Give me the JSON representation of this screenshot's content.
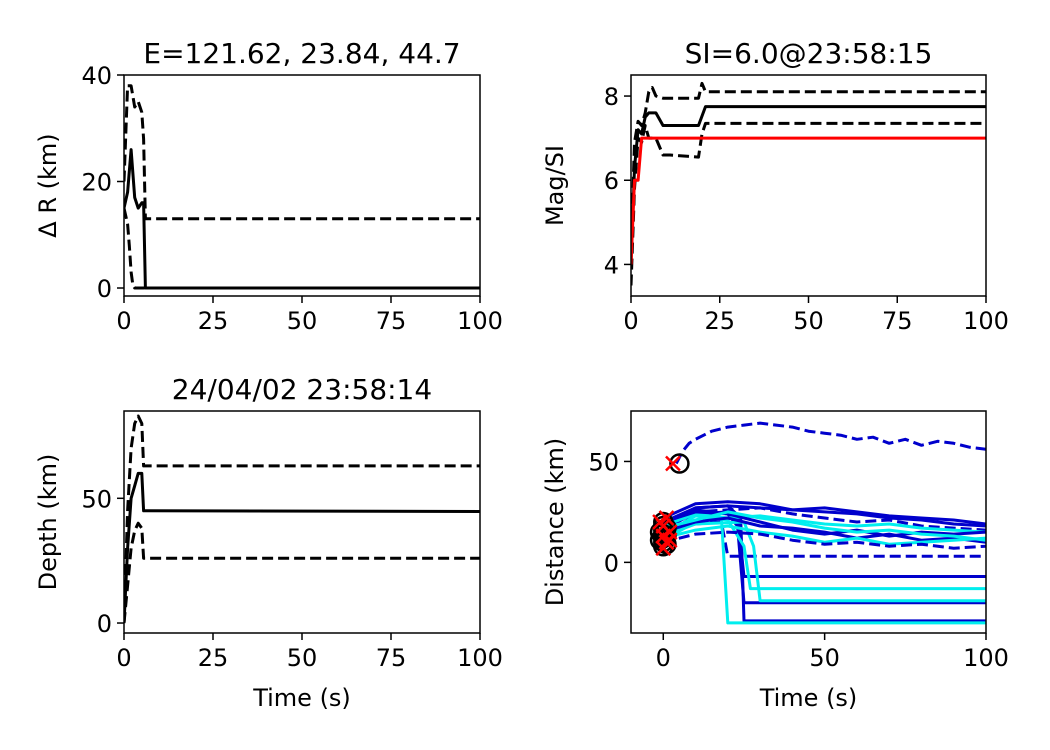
{
  "chart_data": [
    {
      "type": "line",
      "title": "E=121.62, 23.84, 44.7",
      "xlabel": "",
      "ylabel": "Δ R (km)",
      "xlim": [
        0,
        100
      ],
      "ylim": [
        -1.5,
        40
      ],
      "xticks": [
        0,
        25,
        50,
        75,
        100
      ],
      "yticks": [
        0,
        20,
        40
      ],
      "series": [
        {
          "style": "solid",
          "color": "#000000",
          "x": [
            0,
            1,
            2,
            3,
            4,
            5,
            5.5,
            6,
            10,
            100
          ],
          "y": [
            15,
            18,
            26,
            17,
            15,
            16,
            16,
            0,
            0,
            0
          ]
        },
        {
          "style": "dashed",
          "color": "#000000",
          "x": [
            0,
            1,
            2,
            3,
            4,
            5,
            5.5,
            6,
            20,
            100
          ],
          "y": [
            20,
            38,
            38,
            34,
            35,
            33,
            28,
            13,
            13,
            13
          ]
        },
        {
          "style": "dashed",
          "color": "#000000",
          "x": [
            0,
            1,
            1.5,
            2,
            2.5,
            3,
            10,
            100
          ],
          "y": [
            15,
            12,
            8,
            3,
            0.5,
            0,
            0,
            0
          ]
        }
      ]
    },
    {
      "type": "line",
      "title": "SI=6.0@23:58:15",
      "xlabel": "",
      "ylabel": "Mag/SI",
      "xlim": [
        0,
        100
      ],
      "ylim": [
        3.25,
        8.5
      ],
      "xticks": [
        0,
        25,
        50,
        75,
        100
      ],
      "yticks": [
        4,
        6,
        8
      ],
      "series": [
        {
          "style": "solid",
          "color": "#000000",
          "x": [
            0,
            1,
            2,
            3,
            4,
            5,
            7,
            9,
            11,
            19,
            21,
            25,
            100
          ],
          "y": [
            4,
            6.3,
            7.2,
            7.1,
            7.5,
            7.6,
            7.6,
            7.3,
            7.3,
            7.3,
            7.75,
            7.75,
            7.75
          ]
        },
        {
          "style": "dashed",
          "color": "#000000",
          "x": [
            0,
            1,
            2,
            3,
            4,
            5,
            6,
            7,
            9,
            11,
            19,
            20,
            21,
            22,
            100
          ],
          "y": [
            4.3,
            6.9,
            7.4,
            7.3,
            7.6,
            8.1,
            8.2,
            8.0,
            7.95,
            7.95,
            7.95,
            8.3,
            8.1,
            8.1,
            8.1
          ]
        },
        {
          "style": "dashed",
          "color": "#000000",
          "x": [
            0,
            1,
            2,
            3,
            4,
            5,
            7,
            9,
            11,
            19,
            20,
            21,
            25,
            100
          ],
          "y": [
            3.5,
            5.8,
            7.0,
            6.9,
            7.3,
            7.0,
            7.0,
            6.6,
            6.6,
            6.55,
            7.1,
            7.35,
            7.35,
            7.35
          ]
        },
        {
          "style": "solid",
          "color": "#ff0000",
          "x": [
            0,
            1,
            2,
            3,
            4,
            100
          ],
          "y": [
            4,
            6.0,
            6.0,
            7.0,
            7.0,
            7.0
          ]
        }
      ]
    },
    {
      "type": "line",
      "title": "24/04/02 23:58:14",
      "xlabel": "Time (s)",
      "ylabel": "Depth (km)",
      "xlim": [
        0,
        100
      ],
      "ylim": [
        -4,
        85
      ],
      "xticks": [
        0,
        25,
        50,
        75,
        100
      ],
      "yticks": [
        0,
        50
      ],
      "series": [
        {
          "style": "solid",
          "color": "#000000",
          "x": [
            0,
            1,
            2,
            3,
            4,
            5,
            5.5,
            6,
            100
          ],
          "y": [
            0,
            30,
            50,
            55,
            60,
            60,
            45,
            45,
            44.7
          ]
        },
        {
          "style": "dashed",
          "color": "#000000",
          "x": [
            0,
            1,
            2,
            3,
            4,
            5,
            5.5,
            6,
            100
          ],
          "y": [
            0,
            45,
            70,
            80,
            83,
            80,
            63,
            63,
            63
          ]
        },
        {
          "style": "dashed",
          "color": "#000000",
          "x": [
            0,
            1,
            2,
            3,
            4,
            5,
            5.5,
            6,
            100
          ],
          "y": [
            0,
            15,
            30,
            37,
            40,
            38,
            26,
            26,
            26
          ]
        }
      ]
    },
    {
      "type": "line",
      "title": "",
      "xlabel": "Time (s)",
      "ylabel": "Distance (km)",
      "xlim": [
        -10,
        100
      ],
      "ylim": [
        -35,
        75
      ],
      "xticks": [
        0,
        50,
        100
      ],
      "yticks": [
        0,
        50
      ],
      "series": [
        {
          "style": "dashed",
          "color": "#0000cc",
          "x": [
            4,
            6,
            8,
            10,
            15,
            20,
            25,
            30,
            35,
            40,
            45,
            50,
            55,
            60,
            65,
            70,
            75,
            80,
            85,
            90,
            95,
            100
          ],
          "y": [
            49,
            55,
            59,
            61,
            65,
            67,
            68,
            69,
            68,
            67,
            65,
            64,
            63,
            61,
            62,
            59,
            61,
            58,
            60,
            59,
            57,
            56
          ]
        },
        {
          "style": "dashed",
          "color": "#0000cc",
          "x": [
            0,
            10,
            18,
            20,
            100
          ],
          "y": [
            15,
            19,
            20,
            3,
            3
          ]
        },
        {
          "style": "solid",
          "color": "#0000cc",
          "x": [
            0,
            10,
            20,
            23,
            25,
            100
          ],
          "y": [
            12,
            24,
            25,
            23,
            -7,
            -7
          ]
        },
        {
          "style": "solid",
          "color": "#0000cc",
          "x": [
            0,
            10,
            20,
            23,
            25,
            100
          ],
          "y": [
            18,
            26,
            24,
            18,
            -20,
            -20
          ]
        },
        {
          "style": "solid",
          "color": "#0000cc",
          "x": [
            0,
            10,
            20,
            24,
            25,
            100
          ],
          "y": [
            15,
            27,
            28,
            22,
            -29,
            -29
          ]
        },
        {
          "style": "solid",
          "color": "#00eeee",
          "x": [
            0,
            10,
            18,
            20,
            100
          ],
          "y": [
            11,
            20,
            22,
            -30,
            -30
          ]
        },
        {
          "style": "solid",
          "color": "#00eeee",
          "x": [
            0,
            10,
            25,
            28,
            30,
            100
          ],
          "y": [
            13,
            19,
            20,
            8,
            -19,
            -19
          ]
        },
        {
          "style": "solid",
          "color": "#00eeee",
          "x": [
            0,
            10,
            20,
            25,
            27,
            100
          ],
          "y": [
            14,
            23,
            21,
            8,
            -13,
            -13
          ]
        },
        {
          "style": "solid",
          "color": "#0000cc",
          "x": [
            0,
            10,
            20,
            30,
            40,
            50,
            60,
            70,
            80,
            90,
            100
          ],
          "y": [
            20,
            27,
            28,
            27,
            26,
            25,
            24,
            22,
            21,
            19,
            18
          ]
        },
        {
          "style": "solid",
          "color": "#0000cc",
          "x": [
            0,
            10,
            20,
            30,
            40,
            50,
            60,
            70,
            80,
            90,
            100
          ],
          "y": [
            22,
            29,
            30,
            29,
            26,
            27,
            25,
            23,
            22,
            21,
            19
          ]
        },
        {
          "style": "dashed",
          "color": "#0000cc",
          "x": [
            0,
            10,
            20,
            30,
            40,
            50,
            60,
            70,
            80,
            90,
            100
          ],
          "y": [
            16,
            25,
            26,
            27,
            24,
            22,
            20,
            21,
            18,
            17,
            16
          ]
        },
        {
          "style": "solid",
          "color": "#00eeee",
          "x": [
            0,
            10,
            20,
            30,
            40,
            50,
            60,
            70,
            80,
            90,
            100
          ],
          "y": [
            18,
            24,
            22,
            23,
            21,
            19,
            18,
            19,
            17,
            16,
            15
          ]
        },
        {
          "style": "solid",
          "color": "#0000cc",
          "x": [
            0,
            10,
            20,
            30,
            40,
            50,
            60,
            70,
            80,
            90,
            100
          ],
          "y": [
            15,
            20,
            22,
            18,
            17,
            15,
            12,
            14,
            11,
            12,
            10
          ]
        },
        {
          "style": "solid",
          "color": "#00eeee",
          "x": [
            0,
            10,
            20,
            30,
            40,
            50,
            60,
            70,
            80,
            90,
            100
          ],
          "y": [
            12,
            16,
            18,
            15,
            13,
            10,
            12,
            9,
            10,
            11,
            12
          ]
        },
        {
          "style": "dashed",
          "color": "#0000cc",
          "x": [
            0,
            10,
            20,
            30,
            40,
            50,
            60,
            70,
            80,
            90,
            100
          ],
          "y": [
            10,
            14,
            15,
            14,
            11,
            9,
            10,
            8,
            9,
            7,
            8
          ]
        },
        {
          "style": "solid",
          "color": "#0000cc",
          "x": [
            0,
            10,
            20,
            30,
            40,
            50,
            60,
            70,
            80,
            90,
            100
          ],
          "y": [
            20,
            25,
            24,
            20,
            16,
            14,
            16,
            13,
            15,
            14,
            15
          ]
        },
        {
          "style": "solid",
          "color": "#00eeee",
          "x": [
            0,
            10,
            20,
            30,
            40,
            50,
            60,
            70,
            80,
            90,
            100
          ],
          "y": [
            17,
            21,
            25,
            22,
            20,
            17,
            15,
            16,
            14,
            13,
            11
          ]
        }
      ],
      "markers": {
        "black_circles": [
          [
            0,
            8
          ],
          [
            0,
            10
          ],
          [
            0,
            12
          ],
          [
            0,
            14
          ],
          [
            0,
            16
          ],
          [
            0,
            18
          ],
          [
            0,
            20
          ],
          [
            1,
            9
          ],
          [
            1,
            13
          ],
          [
            1,
            17
          ],
          [
            -1,
            11
          ],
          [
            -1,
            15
          ],
          [
            5,
            49
          ]
        ],
        "red_crosses": [
          [
            0,
            7
          ],
          [
            1,
            10
          ],
          [
            0,
            13
          ],
          [
            2,
            15
          ],
          [
            0,
            18
          ],
          [
            -1,
            20
          ],
          [
            1,
            22
          ],
          [
            2,
            11
          ],
          [
            3,
            49
          ]
        ]
      }
    }
  ]
}
